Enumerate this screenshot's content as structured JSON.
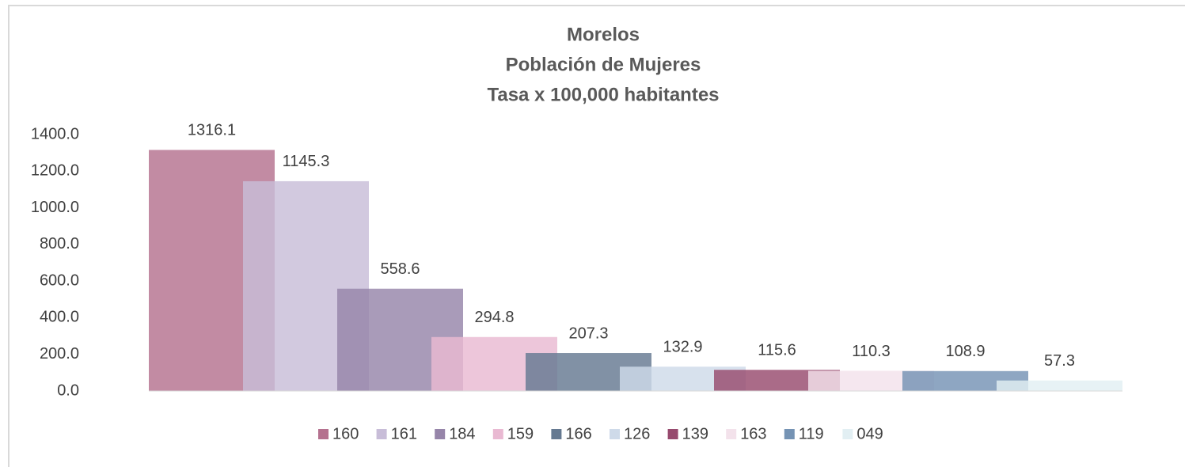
{
  "chart_data": {
    "type": "bar",
    "title": [
      "Morelos",
      "Población de Mujeres",
      "Tasa x 100,000 habitantes"
    ],
    "categories": [
      null
    ],
    "series": [
      {
        "name": "160",
        "color": "#b5718f",
        "values": [
          1316.1
        ]
      },
      {
        "name": "161",
        "color": "#c8bdd8",
        "values": [
          1145.3
        ]
      },
      {
        "name": "184",
        "color": "#9685a9",
        "values": [
          558.6
        ]
      },
      {
        "name": "159",
        "color": "#e9b9d2",
        "values": [
          294.8
        ]
      },
      {
        "name": "166",
        "color": "#657991",
        "values": [
          207.3
        ]
      },
      {
        "name": "126",
        "color": "#cedae9",
        "values": [
          132.9
        ]
      },
      {
        "name": "139",
        "color": "#974a6e",
        "values": [
          115.6
        ]
      },
      {
        "name": "163",
        "color": "#f3e2eb",
        "values": [
          110.3
        ]
      },
      {
        "name": "119",
        "color": "#7593b4",
        "values": [
          108.9
        ]
      },
      {
        "name": "049",
        "color": "#e2eff3",
        "values": [
          57.3
        ]
      }
    ],
    "ylim": [
      0,
      1400
    ],
    "yticks": [
      {
        "value": 0,
        "label": "0.0"
      },
      {
        "value": 200,
        "label": "200.0"
      },
      {
        "value": 400,
        "label": "400.0"
      },
      {
        "value": 600,
        "label": "600.0"
      },
      {
        "value": 800,
        "label": "800.0"
      },
      {
        "value": 1000,
        "label": "1000.0"
      },
      {
        "value": 1200,
        "label": "1200.0"
      },
      {
        "value": 1400,
        "label": "1400.0"
      }
    ],
    "legend": "bottom"
  }
}
